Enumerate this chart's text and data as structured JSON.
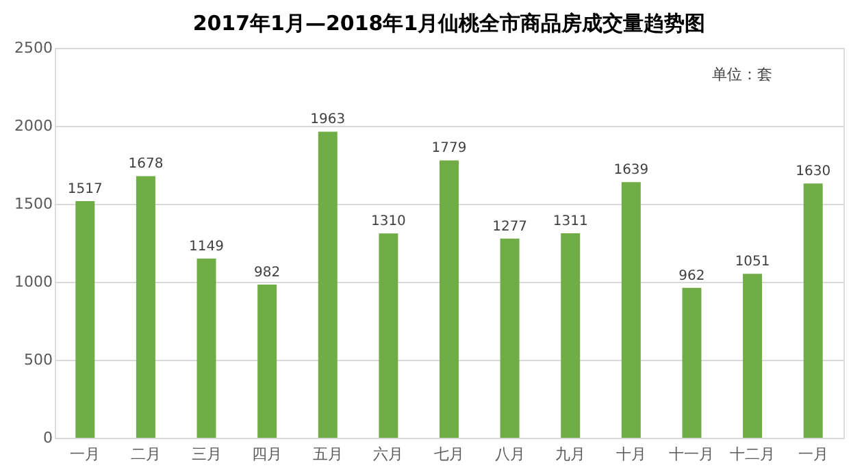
{
  "chart_data": {
    "type": "bar",
    "title": "2017年1月—2018年1月仙桃全市商品房成交量趋势图",
    "categories": [
      "一月",
      "二月",
      "三月",
      "四月",
      "五月",
      "六月",
      "七月",
      "八月",
      "九月",
      "十月",
      "十一月",
      "十二月",
      "一月"
    ],
    "values": [
      1517,
      1678,
      1149,
      982,
      1963,
      1310,
      1779,
      1277,
      1311,
      1639,
      962,
      1051,
      1630
    ],
    "color": "#70ad47",
    "ylim": [
      0,
      2500
    ],
    "yticks": [
      0,
      500,
      1000,
      1500,
      2000,
      2500
    ],
    "grid": "y",
    "data_labels": true,
    "annotations": [
      "单位：套"
    ]
  }
}
